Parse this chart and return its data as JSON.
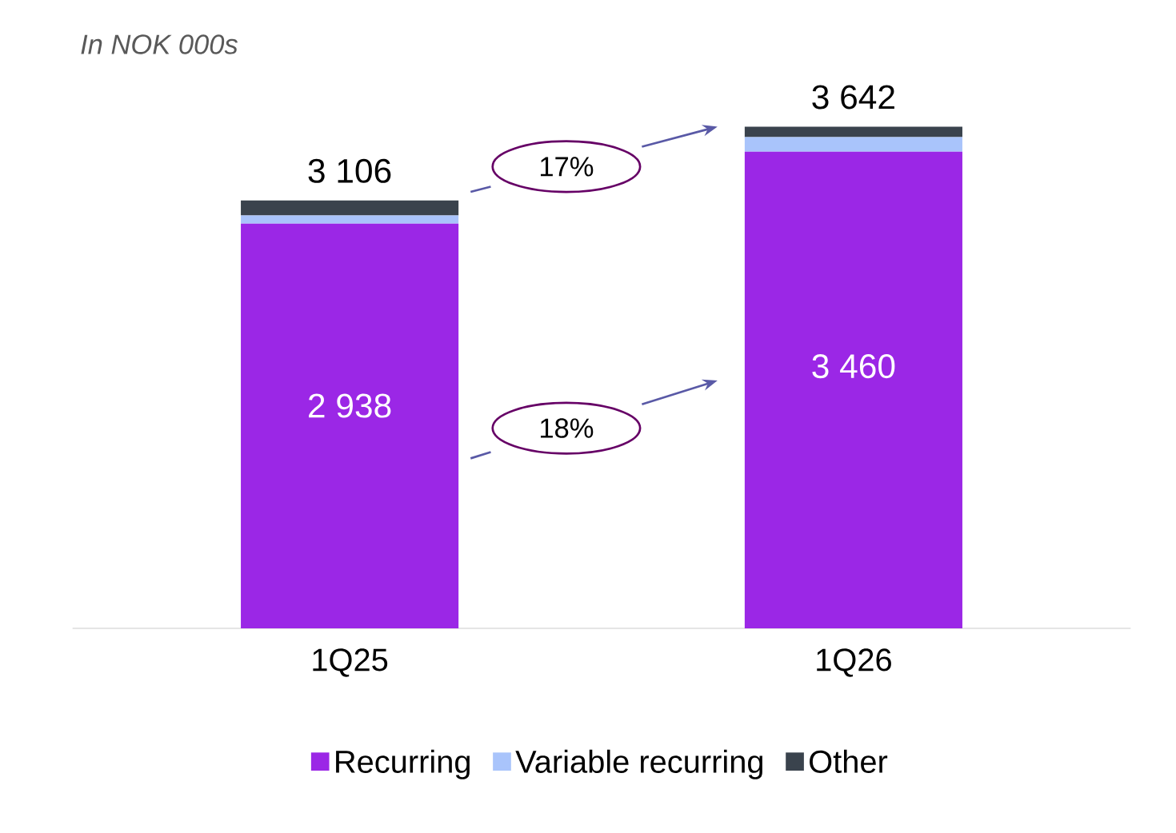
{
  "chart_data": {
    "type": "bar",
    "stacked": true,
    "categories": [
      "1Q25",
      "1Q26"
    ],
    "series": [
      {
        "name": "Recurring",
        "color": "#9b27e6",
        "values": [
          2938,
          3460
        ],
        "value_labels": [
          "2 938",
          "3 460"
        ]
      },
      {
        "name": "Variable recurring",
        "color": "#a9c4fb",
        "values": [
          59,
          106
        ]
      },
      {
        "name": "Other",
        "color": "#3a434d",
        "values": [
          109,
          76
        ]
      }
    ],
    "totals": [
      "3 106",
      "3 642"
    ],
    "annotations": [
      "In NOK 000s",
      "17%",
      "18%"
    ],
    "legend": "bottom",
    "tick_labels": "x",
    "grid": false
  }
}
